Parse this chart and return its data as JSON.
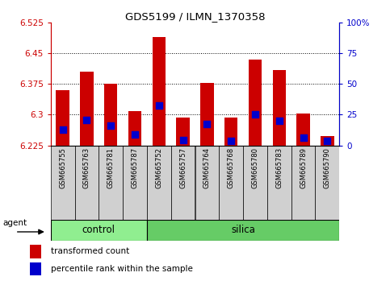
{
  "title": "GDS5199 / ILMN_1370358",
  "samples": [
    "GSM665755",
    "GSM665763",
    "GSM665781",
    "GSM665787",
    "GSM665752",
    "GSM665757",
    "GSM665764",
    "GSM665768",
    "GSM665780",
    "GSM665783",
    "GSM665789",
    "GSM665790"
  ],
  "groups": [
    "control",
    "control",
    "control",
    "control",
    "silica",
    "silica",
    "silica",
    "silica",
    "silica",
    "silica",
    "silica",
    "silica"
  ],
  "bar_tops": [
    6.36,
    6.405,
    6.375,
    6.308,
    6.49,
    6.293,
    6.378,
    6.293,
    6.435,
    6.41,
    6.303,
    6.248
  ],
  "blue_values": [
    6.263,
    6.287,
    6.273,
    6.252,
    6.323,
    6.237,
    6.278,
    6.235,
    6.3,
    6.285,
    6.243,
    6.235
  ],
  "ymin": 6.225,
  "ymax": 6.525,
  "bar_color": "#cc0000",
  "blue_color": "#0000cc",
  "bg_color": "#ffffff",
  "tick_color_left": "#cc0000",
  "tick_color_right": "#0000cc",
  "yticks_left": [
    6.225,
    6.3,
    6.375,
    6.45,
    6.525
  ],
  "yticks_right_vals": [
    0,
    25,
    50,
    75,
    100
  ],
  "yticks_right_pos": [
    6.225,
    6.3,
    6.375,
    6.45,
    6.525
  ],
  "control_color": "#90ee90",
  "silica_color": "#66cc66",
  "legend_items": [
    "transformed count",
    "percentile rank within the sample"
  ],
  "bar_width": 0.55
}
